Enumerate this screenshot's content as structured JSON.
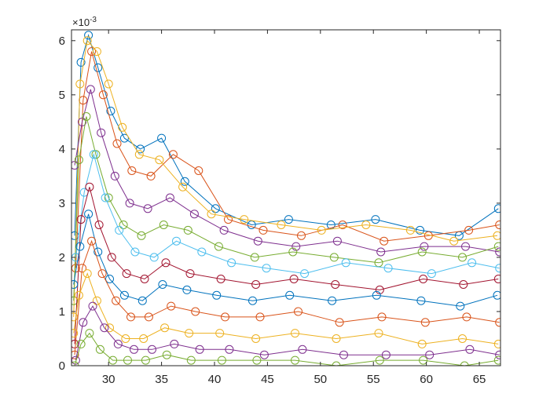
{
  "chart_data": {
    "type": "line",
    "title": "",
    "xlabel": "",
    "ylabel": "",
    "y_exponent_label": "×10",
    "y_exponent_power": "-3",
    "xlim": [
      26.5,
      67
    ],
    "ylim": [
      0,
      6.2
    ],
    "y_scale_factor": 0.001,
    "grid": false,
    "legend": "none",
    "marker": "circle",
    "x_ticks": [
      30,
      35,
      40,
      45,
      50,
      55,
      60,
      65
    ],
    "x_tick_labels": [
      "30",
      "35",
      "40",
      "45",
      "50",
      "55",
      "60",
      "65"
    ],
    "y_ticks": [
      0,
      1,
      2,
      3,
      4,
      5,
      6
    ],
    "y_tick_labels": [
      "0",
      "1",
      "2",
      "3",
      "4",
      "5",
      "6"
    ],
    "colors": [
      "#0072BD",
      "#D95319",
      "#EDB120",
      "#7E2F8E",
      "#77AC30",
      "#4DBEEE",
      "#A2142F"
    ],
    "series": [
      {
        "x": [
          26.8,
          27.4,
          28.1,
          29.0,
          30.2,
          31.5,
          33.0,
          35.0,
          37.2,
          40.1,
          43.5,
          47.0,
          51.0,
          55.2,
          59.4,
          63.1,
          66.8
        ],
        "values": [
          2.4,
          5.6,
          6.1,
          5.5,
          4.7,
          4.2,
          4.0,
          4.2,
          3.4,
          2.9,
          2.6,
          2.7,
          2.6,
          2.7,
          2.5,
          2.4,
          2.9
        ]
      },
      {
        "x": [
          26.9,
          27.6,
          28.4,
          29.5,
          30.8,
          32.2,
          34.0,
          36.1,
          38.5,
          41.3,
          44.6,
          48.2,
          52.1,
          56.0,
          60.2,
          64.0,
          66.9
        ],
        "values": [
          1.8,
          4.9,
          5.8,
          5.0,
          4.1,
          3.6,
          3.5,
          3.9,
          3.6,
          2.7,
          2.5,
          2.4,
          2.6,
          2.3,
          2.4,
          2.5,
          2.6
        ]
      },
      {
        "x": [
          26.7,
          27.3,
          28.0,
          28.9,
          30.0,
          31.3,
          32.9,
          34.8,
          37.0,
          39.7,
          42.8,
          46.3,
          50.1,
          54.3,
          58.5,
          62.6,
          66.7
        ],
        "values": [
          0.9,
          5.2,
          6.0,
          5.8,
          5.2,
          4.4,
          3.9,
          3.8,
          3.3,
          2.8,
          2.7,
          2.6,
          2.5,
          2.6,
          2.5,
          2.3,
          2.4
        ]
      },
      {
        "x": [
          26.8,
          27.5,
          28.3,
          29.3,
          30.6,
          32.0,
          33.7,
          35.8,
          38.1,
          40.9,
          44.1,
          47.7,
          51.6,
          55.7,
          59.8,
          63.7,
          66.9
        ],
        "values": [
          3.7,
          4.5,
          5.1,
          4.3,
          3.5,
          3.0,
          2.9,
          3.1,
          2.8,
          2.5,
          2.3,
          2.2,
          2.3,
          2.1,
          2.2,
          2.2,
          2.1
        ]
      },
      {
        "x": [
          26.7,
          27.2,
          27.9,
          28.8,
          30.0,
          31.4,
          33.1,
          35.2,
          37.5,
          40.4,
          43.8,
          47.4,
          51.3,
          55.5,
          59.6,
          63.4,
          66.8
        ],
        "values": [
          1.2,
          3.8,
          4.6,
          3.9,
          3.1,
          2.6,
          2.4,
          2.6,
          2.5,
          2.2,
          2.0,
          2.1,
          2.0,
          1.9,
          2.1,
          2.0,
          2.2
        ]
      },
      {
        "x": [
          26.9,
          27.7,
          28.6,
          29.7,
          31.0,
          32.5,
          34.3,
          36.4,
          38.8,
          41.6,
          44.9,
          48.5,
          52.4,
          56.4,
          60.5,
          64.3,
          66.9
        ],
        "values": [
          2.0,
          3.2,
          3.9,
          3.1,
          2.5,
          2.1,
          2.0,
          2.3,
          2.1,
          1.9,
          1.8,
          1.7,
          1.9,
          1.8,
          1.7,
          1.9,
          1.8
        ]
      },
      {
        "x": [
          26.8,
          27.4,
          28.2,
          29.1,
          30.3,
          31.7,
          33.4,
          35.4,
          37.7,
          40.6,
          43.9,
          47.5,
          51.4,
          55.6,
          59.7,
          63.5,
          66.8
        ],
        "values": [
          0.4,
          2.7,
          3.3,
          2.6,
          2.0,
          1.7,
          1.6,
          1.9,
          1.7,
          1.6,
          1.5,
          1.6,
          1.5,
          1.4,
          1.6,
          1.5,
          1.6
        ]
      },
      {
        "x": [
          26.7,
          27.3,
          28.1,
          29.0,
          30.1,
          31.5,
          33.2,
          35.1,
          37.4,
          40.2,
          43.6,
          47.1,
          51.1,
          55.3,
          59.5,
          63.2,
          66.7
        ],
        "values": [
          1.5,
          2.2,
          2.8,
          2.1,
          1.6,
          1.3,
          1.2,
          1.5,
          1.4,
          1.3,
          1.2,
          1.3,
          1.2,
          1.3,
          1.2,
          1.1,
          1.3
        ]
      },
      {
        "x": [
          26.8,
          27.5,
          28.4,
          29.4,
          30.7,
          32.1,
          33.8,
          35.9,
          38.2,
          41.0,
          44.3,
          47.9,
          51.8,
          55.8,
          59.9,
          63.8,
          66.9
        ],
        "values": [
          0.2,
          1.8,
          2.3,
          1.7,
          1.2,
          0.9,
          0.9,
          1.1,
          1.0,
          0.9,
          0.9,
          1.0,
          0.8,
          0.9,
          0.8,
          0.9,
          0.8
        ]
      },
      {
        "x": [
          26.7,
          27.2,
          28.0,
          28.9,
          30.1,
          31.6,
          33.3,
          35.3,
          37.6,
          40.5,
          43.9,
          47.6,
          51.5,
          55.5,
          59.6,
          63.4,
          66.8
        ],
        "values": [
          0.6,
          1.3,
          1.7,
          1.2,
          0.7,
          0.5,
          0.5,
          0.7,
          0.6,
          0.6,
          0.5,
          0.6,
          0.5,
          0.6,
          0.4,
          0.5,
          0.4
        ]
      },
      {
        "x": [
          26.9,
          27.6,
          28.5,
          29.6,
          30.9,
          32.4,
          34.1,
          36.2,
          38.6,
          41.4,
          44.7,
          48.3,
          52.2,
          56.2,
          60.3,
          64.1,
          66.9
        ],
        "values": [
          0.1,
          0.8,
          1.1,
          0.7,
          0.4,
          0.3,
          0.3,
          0.4,
          0.3,
          0.3,
          0.2,
          0.3,
          0.2,
          0.2,
          0.2,
          0.3,
          0.2
        ]
      },
      {
        "x": [
          26.8,
          27.4,
          28.2,
          29.2,
          30.4,
          31.8,
          33.5,
          35.5,
          37.8,
          40.7,
          44.0,
          47.6,
          51.5,
          55.6,
          59.7,
          63.6,
          66.8
        ],
        "values": [
          0.0,
          0.4,
          0.6,
          0.3,
          0.1,
          0.1,
          0.1,
          0.2,
          0.1,
          0.1,
          0.1,
          0.1,
          0.0,
          0.1,
          0.1,
          0.0,
          0.1
        ]
      }
    ]
  }
}
